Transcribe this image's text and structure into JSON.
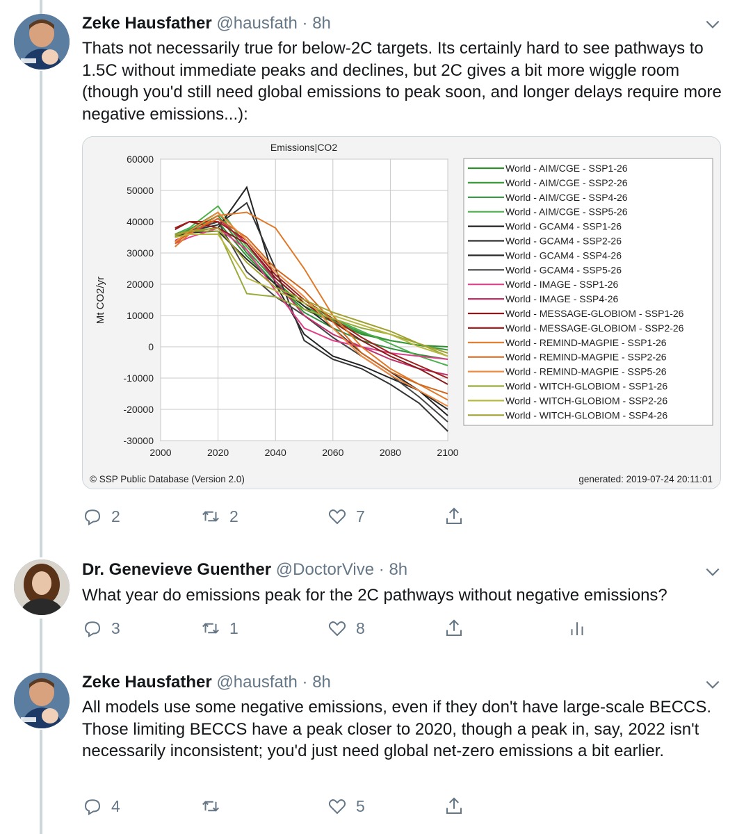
{
  "tweets": [
    {
      "name": "Zeke Hausfather",
      "handle": "@hausfath",
      "time": "8h",
      "text": "Thats not necessarily true for below-2C targets. Its certainly hard to see pathways to 1.5C without immediate peaks and declines, but 2C gives a bit more wiggle room (though you'd still need global emissions to peak soon, and longer delays require more negative emissions...):",
      "replies": "2",
      "retweets": "2",
      "likes": "7"
    },
    {
      "name": "Dr. Genevieve Guenther",
      "handle": "@DoctorVive",
      "time": "8h",
      "text": "What year do emissions peak for the 2C pathways without negative emissions?",
      "replies": "3",
      "retweets": "1",
      "likes": "8"
    },
    {
      "name": "Zeke Hausfather",
      "handle": "@hausfath",
      "time": "8h",
      "text": "All models use some negative emissions, even if they don't have large-scale BECCS. Those limiting BECCS have a peak closer to 2020, though a peak in, say, 2022 isn't necessarily inconsistent; you'd just need global net-zero emissions a bit earlier.",
      "replies": "4",
      "retweets": "",
      "likes": "5"
    }
  ],
  "separator": "·",
  "chart_data": {
    "type": "line",
    "title": "Emissions|CO2",
    "xlabel": "",
    "ylabel": "Mt CO2/yr",
    "xlim": [
      2000,
      2100
    ],
    "ylim": [
      -30000,
      60000
    ],
    "x_ticks": [
      "2000",
      "2020",
      "2040",
      "2060",
      "2080",
      "2100"
    ],
    "y_ticks": [
      "60000",
      "50000",
      "40000",
      "30000",
      "20000",
      "10000",
      "0",
      "-10000",
      "-20000",
      "-30000"
    ],
    "grid": true,
    "legend_position": "right",
    "footer_left": "© SSP Public Database (Version 2.0)",
    "footer_right": "generated: 2019-07-24 20:11:01",
    "x": [
      2005,
      2010,
      2020,
      2030,
      2040,
      2050,
      2060,
      2070,
      2080,
      2090,
      2100
    ],
    "series": [
      {
        "name": "World - AIM/CGE - SSP1-26",
        "color": "#2e8b2e",
        "values": [
          35000,
          37000,
          40000,
          29000,
          20000,
          12000,
          8000,
          4000,
          2000,
          500,
          0
        ]
      },
      {
        "name": "World - AIM/CGE - SSP2-26",
        "color": "#3a9a3a",
        "values": [
          35500,
          37500,
          43000,
          31000,
          21000,
          13000,
          8500,
          4500,
          2000,
          500,
          -1000
        ]
      },
      {
        "name": "World - AIM/CGE - SSP4-26",
        "color": "#2f8f3f",
        "values": [
          35000,
          37000,
          42000,
          30000,
          20000,
          11000,
          6000,
          2000,
          -500,
          -2500,
          -4000
        ]
      },
      {
        "name": "World - AIM/CGE - SSP5-26",
        "color": "#4caf4c",
        "values": [
          36000,
          38000,
          45000,
          32000,
          22000,
          14000,
          9000,
          5000,
          1000,
          -3000,
          -6000
        ]
      },
      {
        "name": "World - GCAM4 - SSP1-26",
        "color": "#222222",
        "values": [
          36000,
          37000,
          38000,
          51000,
          20000,
          4000,
          -3000,
          -6000,
          -10000,
          -14000,
          -22000
        ]
      },
      {
        "name": "World - GCAM4 - SSP2-26",
        "color": "#333333",
        "values": [
          36000,
          37000,
          39000,
          46000,
          25000,
          2000,
          -4000,
          -7000,
          -12000,
          -18000,
          -27000
        ]
      },
      {
        "name": "World - GCAM4 - SSP4-26",
        "color": "#2a2a2a",
        "values": [
          35000,
          36500,
          37000,
          28000,
          20000,
          13000,
          6000,
          -2000,
          -8000,
          -14000,
          -20000
        ]
      },
      {
        "name": "World - GCAM4 - SSP5-26",
        "color": "#444444",
        "values": [
          36000,
          37000,
          40000,
          24000,
          16000,
          10000,
          3000,
          -3000,
          -9000,
          -16000,
          -24000
        ]
      },
      {
        "name": "World - IMAGE - SSP1-26",
        "color": "#e0408a",
        "values": [
          33000,
          35000,
          38000,
          31000,
          18000,
          6000,
          2000,
          0,
          -2000,
          -3000,
          -4000
        ]
      },
      {
        "name": "World - IMAGE - SSP4-26",
        "color": "#c0306a",
        "values": [
          34000,
          36000,
          41000,
          33000,
          21000,
          10000,
          4000,
          0,
          -4000,
          -7000,
          -9000
        ]
      },
      {
        "name": "World - MESSAGE-GLOBIOM - SSP1-26",
        "color": "#8b1a1a",
        "values": [
          37500,
          40000,
          38000,
          33000,
          22000,
          14000,
          8000,
          2000,
          -3000,
          -7000,
          -12000
        ]
      },
      {
        "name": "World - MESSAGE-GLOBIOM - SSP2-26",
        "color": "#a02020",
        "values": [
          38000,
          40000,
          40000,
          34000,
          23000,
          15000,
          9000,
          3000,
          -2000,
          -6000,
          -10000
        ]
      },
      {
        "name": "World - REMIND-MAGPIE - SSP1-26",
        "color": "#e07a2a",
        "values": [
          32000,
          36000,
          42000,
          43000,
          38000,
          25000,
          10000,
          0,
          -7000,
          -12000,
          -17000
        ]
      },
      {
        "name": "World - REMIND-MAGPIE - SSP2-26",
        "color": "#d06820",
        "values": [
          33000,
          36500,
          41000,
          35000,
          25000,
          18000,
          8000,
          -2000,
          -8000,
          -12000,
          -15000
        ]
      },
      {
        "name": "World - REMIND-MAGPIE - SSP5-26",
        "color": "#f08a40",
        "values": [
          33500,
          37000,
          43000,
          34000,
          24000,
          16000,
          6000,
          -3000,
          -9000,
          -14000,
          -19000
        ]
      },
      {
        "name": "World - WITCH-GLOBIOM - SSP1-26",
        "color": "#9aaa3a",
        "values": [
          36000,
          37000,
          37000,
          17000,
          16000,
          12000,
          9000,
          6000,
          4000,
          1000,
          -3000
        ]
      },
      {
        "name": "World - WITCH-GLOBIOM - SSP2-26",
        "color": "#b8b840",
        "values": [
          35000,
          36000,
          36000,
          22000,
          18000,
          14000,
          10000,
          7000,
          4000,
          0,
          -3000
        ]
      },
      {
        "name": "World - WITCH-GLOBIOM - SSP4-26",
        "color": "#a0a030",
        "values": [
          35500,
          37000,
          38000,
          27000,
          19000,
          15000,
          11000,
          8000,
          5000,
          1000,
          -2000
        ]
      }
    ]
  }
}
